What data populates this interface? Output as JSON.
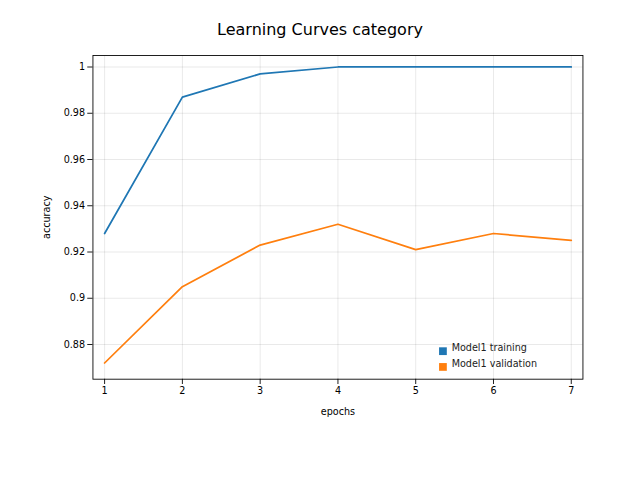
{
  "chart_data": {
    "type": "line",
    "title": "Learning Curves category",
    "xlabel": "epochs",
    "ylabel": "accuracy",
    "x": [
      1,
      2,
      3,
      4,
      5,
      6,
      7
    ],
    "series": [
      {
        "name": "Model1 training",
        "color": "#1f77b4",
        "values": [
          0.928,
          0.987,
          0.997,
          1.0,
          1.0,
          1.0,
          1.0
        ]
      },
      {
        "name": "Model1 validation",
        "color": "#ff7f0e",
        "values": [
          0.872,
          0.905,
          0.923,
          0.932,
          0.921,
          0.928,
          0.925
        ]
      }
    ],
    "xlim": [
      0.85,
      7.15
    ],
    "xticks": [
      1,
      2,
      3,
      4,
      5,
      6,
      7
    ],
    "ylim": [
      0.865,
      1.005
    ],
    "yticks": [
      0.88,
      0.9,
      0.92,
      0.94,
      0.96,
      0.98,
      1
    ],
    "grid": true,
    "legend": "lower right"
  }
}
